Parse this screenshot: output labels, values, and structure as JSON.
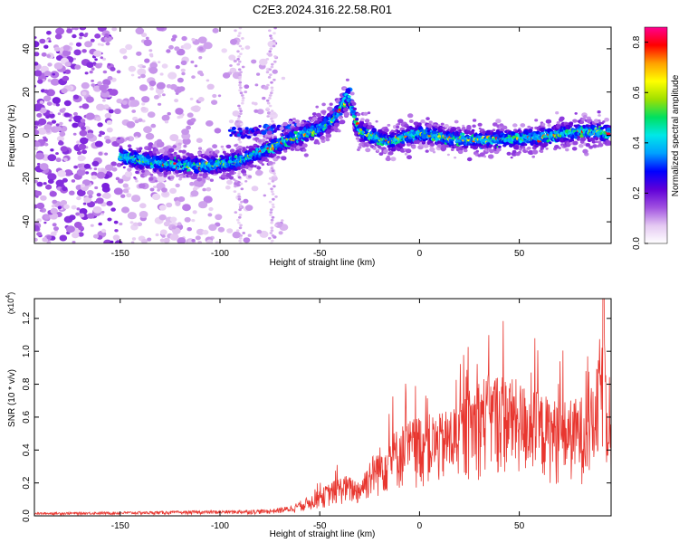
{
  "title": "C2E3.2024.316.22.58.R01",
  "colors": {
    "trace": "#e8362f",
    "axis": "#000000"
  },
  "chart_data": [
    {
      "type": "heatmap",
      "xlabel": "Height of straight line (km)",
      "ylabel": "Frequency (Hz)",
      "xlim": [
        -193,
        96
      ],
      "ylim": [
        -50,
        50
      ],
      "xticks": [
        -150,
        -100,
        -50,
        0,
        50
      ],
      "yticks": [
        -40,
        -20,
        0,
        20,
        40
      ],
      "colorbar": {
        "label": "Normalized spectral amplitude",
        "range": [
          0.0,
          0.86
        ],
        "ticks": [
          0.0,
          0.2,
          0.4,
          0.6,
          0.8
        ],
        "colormap": [
          "#ffffff",
          "#e4c8f2",
          "#a050e0",
          "#6000d8",
          "#0000ff",
          "#00a0ff",
          "#00e8e8",
          "#00e060",
          "#a0e000",
          "#ffff00",
          "#ffa000",
          "#ff0000",
          "#ff0090"
        ]
      },
      "ridge": [
        {
          "x": -148,
          "f": -10
        },
        {
          "x": -135,
          "f": -12
        },
        {
          "x": -120,
          "f": -14
        },
        {
          "x": -105,
          "f": -14
        },
        {
          "x": -90,
          "f": -12
        },
        {
          "x": -80,
          "f": -8
        },
        {
          "x": -70,
          "f": -4
        },
        {
          "x": -60,
          "f": 0
        },
        {
          "x": -50,
          "f": 3
        },
        {
          "x": -42,
          "f": 8
        },
        {
          "x": -36,
          "f": 18
        },
        {
          "x": -30,
          "f": 2
        },
        {
          "x": -15,
          "f": -3
        },
        {
          "x": 0,
          "f": 1
        },
        {
          "x": 20,
          "f": -2
        },
        {
          "x": 40,
          "f": -2
        },
        {
          "x": 60,
          "f": -1
        },
        {
          "x": 80,
          "f": 2
        },
        {
          "x": 95,
          "f": 1
        }
      ],
      "upper_branch": [
        {
          "x": -95,
          "f": 1
        },
        {
          "x": -85,
          "f": 2
        },
        {
          "x": -75,
          "f": 3
        },
        {
          "x": -65,
          "f": 4
        },
        {
          "x": -50,
          "f": 5
        },
        {
          "x": -40,
          "f": 12
        },
        {
          "x": -36,
          "f": 20
        }
      ]
    },
    {
      "type": "line",
      "xlabel": "Height of straight line (km)",
      "ylabel": "SNR (10 * v/v)",
      "scale_label": "(x10",
      "scale_exp": "4",
      "xlim": [
        -193,
        96
      ],
      "ylim": [
        0,
        1.32
      ],
      "xticks": [
        -150,
        -100,
        -50,
        0,
        50
      ],
      "yticks": [
        0.0,
        0.2,
        0.4,
        0.6,
        0.8,
        1.0,
        1.2
      ],
      "envelope": [
        {
          "x": -193,
          "y": 0.02
        },
        {
          "x": -150,
          "y": 0.025
        },
        {
          "x": -120,
          "y": 0.03
        },
        {
          "x": -90,
          "y": 0.035
        },
        {
          "x": -75,
          "y": 0.04
        },
        {
          "x": -65,
          "y": 0.06
        },
        {
          "x": -55,
          "y": 0.12
        },
        {
          "x": -45,
          "y": 0.2
        },
        {
          "x": -38,
          "y": 0.25
        },
        {
          "x": -30,
          "y": 0.22
        },
        {
          "x": -25,
          "y": 0.35
        },
        {
          "x": -18,
          "y": 0.45
        },
        {
          "x": -10,
          "y": 0.55
        },
        {
          "x": 0,
          "y": 0.62
        },
        {
          "x": 10,
          "y": 0.62
        },
        {
          "x": 20,
          "y": 0.7
        },
        {
          "x": 30,
          "y": 0.85
        },
        {
          "x": 40,
          "y": 0.88
        },
        {
          "x": 50,
          "y": 0.82
        },
        {
          "x": 60,
          "y": 0.75
        },
        {
          "x": 70,
          "y": 0.7
        },
        {
          "x": 80,
          "y": 0.72
        },
        {
          "x": 88,
          "y": 0.8
        },
        {
          "x": 92,
          "y": 1.3
        },
        {
          "x": 96,
          "y": 0.6
        }
      ],
      "peak": {
        "x": 92,
        "y": 1.32
      }
    }
  ]
}
